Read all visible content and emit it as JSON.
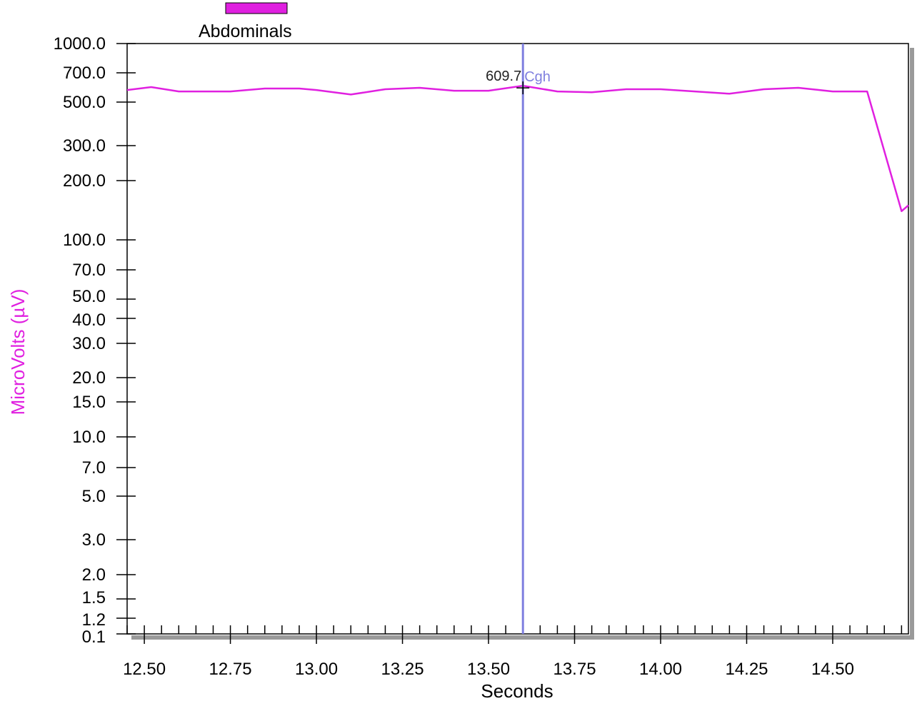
{
  "colors": {
    "series": "#e020e0",
    "cursor": "#7f7fdf",
    "axis": "#000000",
    "shadow": "#9a9a9a",
    "background": "#ffffff"
  },
  "legend": {
    "label": "Abdominals",
    "placement": "top-left"
  },
  "cursor": {
    "x": 13.6,
    "value_label": "609.7",
    "name": "Cgh"
  },
  "chart_data": {
    "type": "line",
    "title": "",
    "xlabel": "Seconds",
    "ylabel": "MicroVolts (µV)",
    "y_scale": "log",
    "xlim": [
      12.45,
      14.72
    ],
    "ylim": [
      0.1,
      1000.0
    ],
    "grid": false,
    "x_ticks": [
      "12.50",
      "12.75",
      "13.00",
      "13.25",
      "13.50",
      "13.75",
      "14.00",
      "14.25",
      "14.50"
    ],
    "y_ticks": [
      "1000.0",
      "700.0",
      "500.0",
      "300.0",
      "200.0",
      "100.0",
      "70.0",
      "50.0",
      "40.0",
      "30.0",
      "20.0",
      "15.0",
      "10.0",
      "7.0",
      "5.0",
      "3.0",
      "2.0",
      "1.5",
      "1.2",
      "0.1"
    ],
    "series": [
      {
        "name": "Abdominals",
        "x": [
          12.45,
          12.52,
          12.6,
          12.75,
          12.85,
          12.95,
          13.0,
          13.1,
          13.2,
          13.3,
          13.4,
          13.5,
          13.6,
          13.7,
          13.8,
          13.9,
          14.0,
          14.1,
          14.2,
          14.3,
          14.4,
          14.5,
          14.6,
          14.7,
          14.72
        ],
        "y": [
          580,
          600,
          570,
          570,
          590,
          590,
          580,
          550,
          585,
          595,
          575,
          575,
          609.7,
          570,
          565,
          585,
          585,
          570,
          555,
          585,
          595,
          570,
          570,
          140,
          150
        ]
      }
    ]
  }
}
